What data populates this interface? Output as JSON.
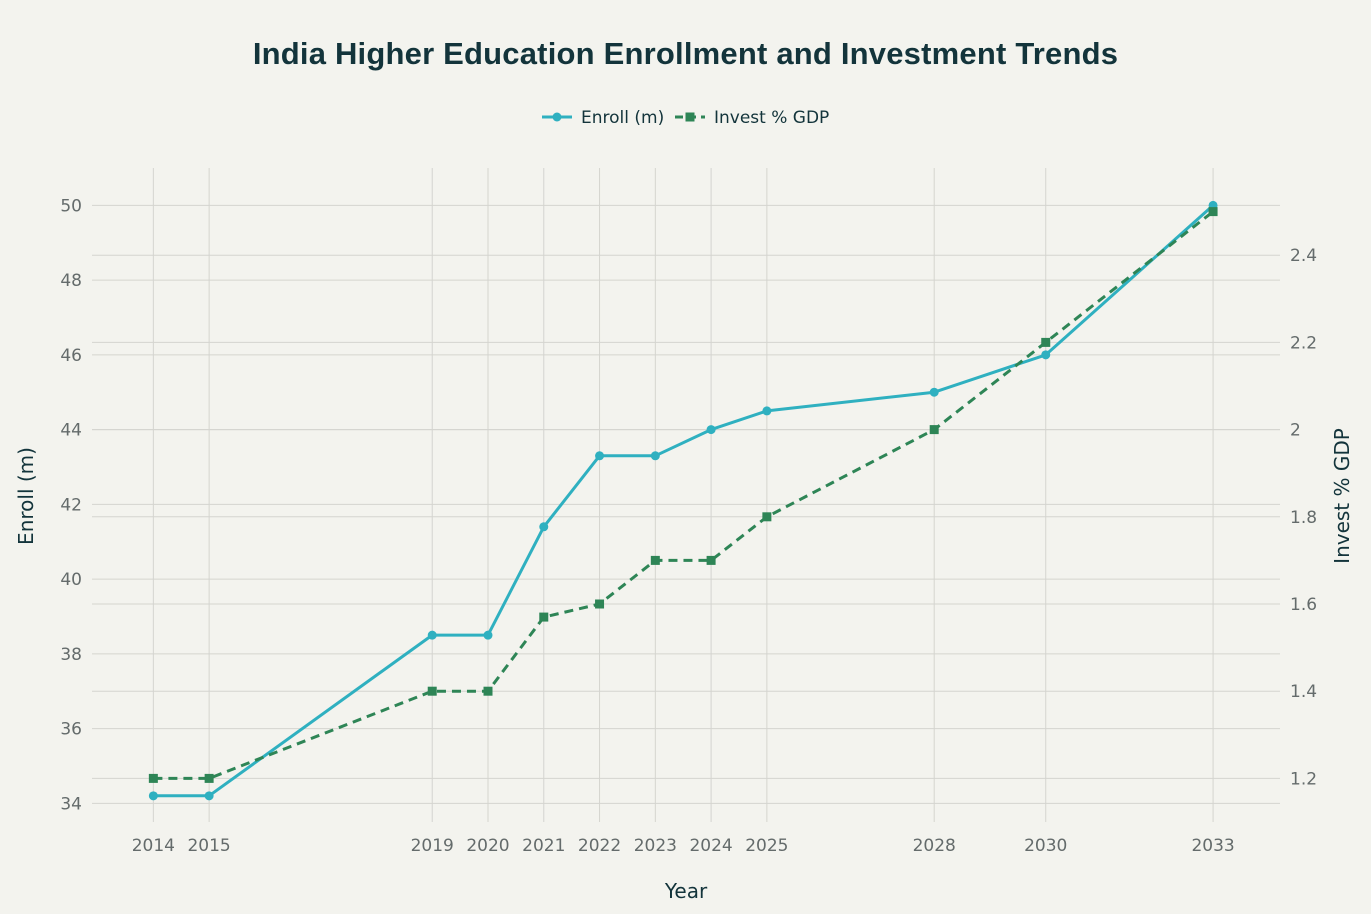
{
  "chart_data": {
    "type": "line",
    "title": "India Higher Education Enrollment and Investment Trends",
    "xlabel": "Year",
    "ylabel": "Enroll (m)",
    "y2label": "Invest % GDP",
    "x": [
      2014,
      2015,
      2019,
      2020,
      2021,
      2022,
      2023,
      2024,
      2025,
      2028,
      2030,
      2033
    ],
    "x_tick_labels": [
      "2014",
      "2015",
      "2019",
      "2020",
      "2021",
      "2022",
      "2023",
      "2024",
      "2025",
      "2028",
      "2030",
      "2033"
    ],
    "y_ticks": [
      "34",
      "36",
      "38",
      "40",
      "42",
      "44",
      "46",
      "48",
      "50"
    ],
    "y2_ticks": [
      "1.2",
      "1.4",
      "1.6",
      "1.8",
      "2",
      "2.2",
      "2.4"
    ],
    "ylim": [
      33.5,
      51
    ],
    "y2lim": [
      1.1,
      2.6
    ],
    "grid": true,
    "legend_position": "top-center",
    "series": [
      {
        "name": "Enroll (m)",
        "axis": "left",
        "color": "#2fb0c0",
        "marker": "circle",
        "dash": "solid",
        "values": [
          34.2,
          34.2,
          38.5,
          38.5,
          41.4,
          43.3,
          43.3,
          44.0,
          44.5,
          45.0,
          46.0,
          50.0
        ]
      },
      {
        "name": "Invest % GDP",
        "axis": "right",
        "color": "#2e8556",
        "marker": "square",
        "dash": "dashed",
        "values": [
          1.2,
          1.2,
          1.4,
          1.4,
          1.57,
          1.6,
          1.7,
          1.7,
          1.8,
          2.0,
          2.2,
          2.5
        ]
      }
    ]
  }
}
